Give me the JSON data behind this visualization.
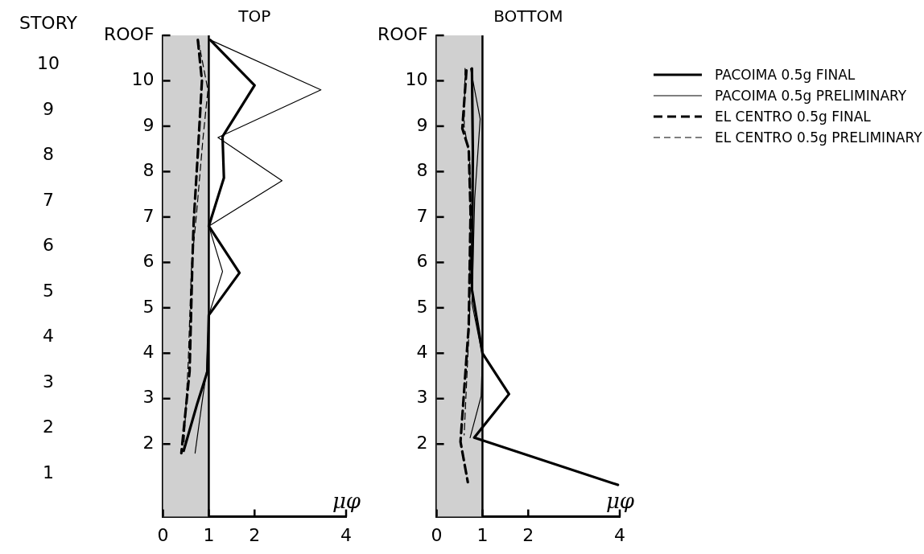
{
  "chart_data": [
    {
      "type": "line",
      "title": "TOP",
      "xlabel": "μφ",
      "xlim": [
        0,
        4
      ],
      "xticks": [
        0,
        1,
        2,
        4
      ],
      "ylim": [
        0.4,
        11
      ],
      "yticks": [
        2,
        3,
        4,
        5,
        6,
        7,
        8,
        9,
        10,
        {
          "value": 11,
          "label": "ROOF"
        }
      ],
      "grid": false,
      "legend": false,
      "marker": "none",
      "bands": [
        {
          "axis": "x",
          "from": 0,
          "to": 1,
          "color": "#d0d0d0"
        }
      ],
      "ref_lines": [
        {
          "axis": "x",
          "value": 1,
          "color": "#000000"
        }
      ],
      "annotations": [
        "STORY",
        "10",
        "9",
        "8",
        "7",
        "6",
        "5",
        "4",
        "3",
        "2",
        "1"
      ],
      "series": [
        {
          "color": "#000000",
          "line_style": "solid",
          "x": [
            1.03,
            2.0,
            1.3,
            1.33,
            1.0,
            1.67,
            1.0,
            0.97,
            0.75,
            0.45
          ],
          "values": [
            10.9,
            9.9,
            8.77,
            7.86,
            6.8,
            5.77,
            4.84,
            3.6,
            2.9,
            1.85
          ]
        },
        {
          "color": "#000000",
          "line_style": "solid",
          "x": [
            1.03,
            3.45,
            1.2,
            2.6,
            1.0,
            1.3,
            1.0,
            0.95,
            0.85,
            0.7
          ],
          "values": [
            10.9,
            9.8,
            8.75,
            7.8,
            6.8,
            5.8,
            4.84,
            3.6,
            2.9,
            1.8
          ]
        },
        {
          "color": "#000000",
          "line_style": "dashed",
          "x": [
            0.76,
            0.85,
            0.76,
            0.67,
            0.64,
            0.58,
            0.4
          ],
          "values": [
            10.9,
            10.0,
            8.4,
            6.9,
            5.98,
            3.6,
            1.8
          ]
        },
        {
          "color": "#000000",
          "line_style": "dashed",
          "x": [
            0.77,
            0.98,
            0.87,
            0.73,
            0.62,
            0.55,
            0.45
          ],
          "values": [
            10.9,
            9.8,
            8.7,
            7.05,
            5.9,
            3.8,
            1.85
          ]
        }
      ]
    },
    {
      "type": "line",
      "title": "BOTTOM",
      "xlabel": "μφ",
      "xlim": [
        0,
        4
      ],
      "xticks": [
        0,
        1,
        2,
        4
      ],
      "ylim": [
        0.4,
        11
      ],
      "yticks": [
        2,
        3,
        4,
        5,
        6,
        7,
        8,
        9,
        10,
        {
          "value": 11,
          "label": "ROOF"
        }
      ],
      "grid": false,
      "legend": "right",
      "marker": "none",
      "bands": [
        {
          "axis": "x",
          "from": 0,
          "to": 1,
          "color": "#d0d0d0"
        }
      ],
      "ref_lines": [
        {
          "axis": "x",
          "value": 1,
          "color": "#000000"
        }
      ],
      "series": [
        {
          "name": "PACOIMA 0.5g FINAL",
          "color": "#000000",
          "line_style": "solid",
          "x": [
            0.77,
            0.79,
            0.77,
            1.0,
            1.58,
            0.82,
            3.96
          ],
          "values": [
            10.27,
            8.4,
            5.4,
            4.0,
            3.1,
            2.14,
            1.1
          ]
        },
        {
          "name": "PACOIMA 0.5g PRELIMINARY",
          "color": "#000000",
          "line_style": "solid",
          "x": [
            0.74,
            0.95,
            0.83,
            0.77,
            1.0,
            0.97,
            0.73
          ],
          "values": [
            10.27,
            9.16,
            7.4,
            5.1,
            3.95,
            3.05,
            2.14
          ]
        },
        {
          "name": "EL CENTRO 0.5g FINAL",
          "color": "#000000",
          "line_style": "dashed",
          "x": [
            0.65,
            0.56,
            0.7,
            0.74,
            0.7,
            0.52,
            0.68
          ],
          "values": [
            10.23,
            8.95,
            8.5,
            7.1,
            4.6,
            2.05,
            1.16
          ]
        },
        {
          "name": "EL CENTRO 0.5g PRELIMINARY",
          "color": "#000000",
          "line_style": "dashed",
          "x": [
            0.62,
            0.6,
            0.72,
            0.74,
            0.72,
            0.6
          ],
          "values": [
            10.27,
            9.0,
            8.3,
            7.0,
            4.8,
            2.2
          ]
        }
      ]
    }
  ]
}
